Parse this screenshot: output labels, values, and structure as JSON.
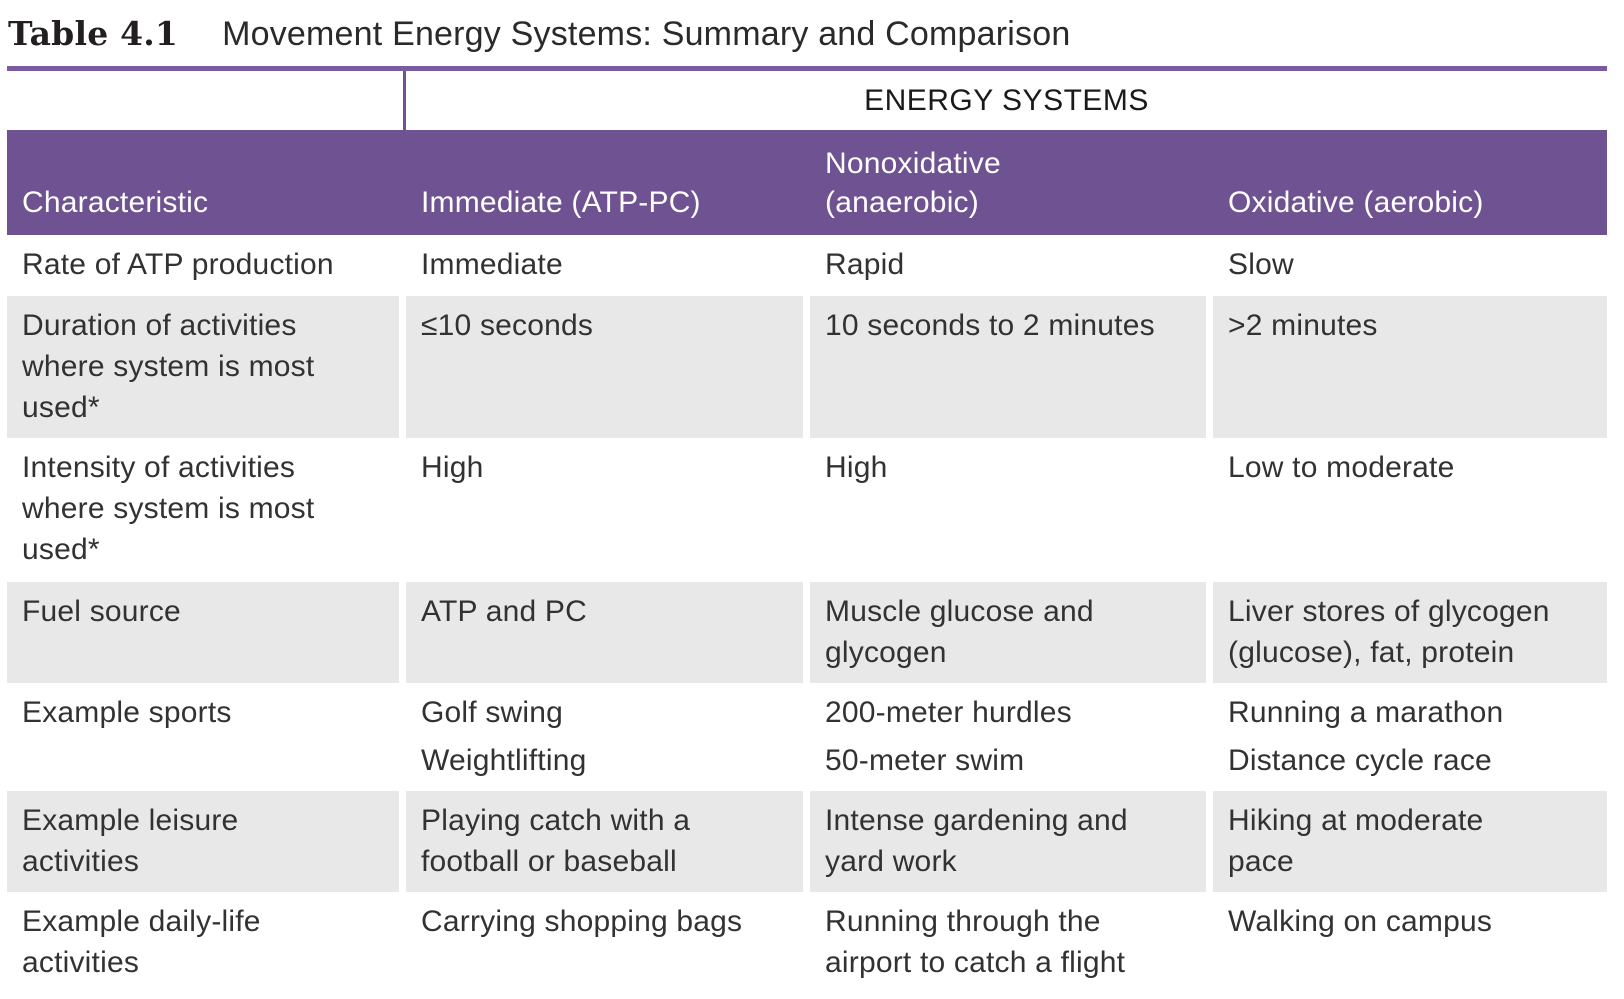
{
  "theme": {
    "band-purple": "#6e5291",
    "rule-purple": "#7a5b9e",
    "row-gray": "#e8e8e8",
    "text-dark": "#333132",
    "header-text": "#ffffff",
    "title-dark": "#231f20"
  },
  "title": {
    "label": "Table 4.1",
    "text": "Movement Energy Systems: Summary and Comparison"
  },
  "table": {
    "group_header": "ENERGY SYSTEMS",
    "columns": [
      "Characteristic",
      "Immediate (ATP-PC)",
      "Nonoxidative\n(anaerobic)",
      "Oxidative (aerobic)"
    ],
    "rows": [
      {
        "cells": [
          "Rate of ATP production",
          "Immediate",
          "Rapid",
          "Slow"
        ]
      },
      {
        "cells": [
          "Duration of activities\nwhere system is most\nused*",
          "≤10 seconds",
          "10 seconds to 2 minutes",
          ">2 minutes"
        ]
      },
      {
        "cells": [
          "Intensity of activities\nwhere system is most\nused*",
          "High",
          "High",
          "Low to moderate"
        ]
      },
      {
        "cells": [
          "Fuel source",
          "ATP and PC",
          "Muscle glucose and\nglycogen",
          "Liver stores of glycogen\n(glucose), fat, protein"
        ]
      },
      {
        "cells": [
          "Example sports",
          [
            "Golf swing",
            "Weightlifting"
          ],
          [
            "200-meter hurdles",
            "50-meter swim"
          ],
          [
            "Running a marathon",
            "Distance cycle race"
          ]
        ]
      },
      {
        "cells": [
          "Example leisure\nactivities",
          "Playing catch with a\nfootball or baseball",
          "Intense gardening and\nyard work",
          "Hiking at moderate\npace"
        ]
      },
      {
        "cells": [
          "Example daily-life\nactivities",
          "Carrying shopping bags",
          "Running through the\nairport to catch a flight",
          "Walking on campus"
        ]
      }
    ]
  }
}
